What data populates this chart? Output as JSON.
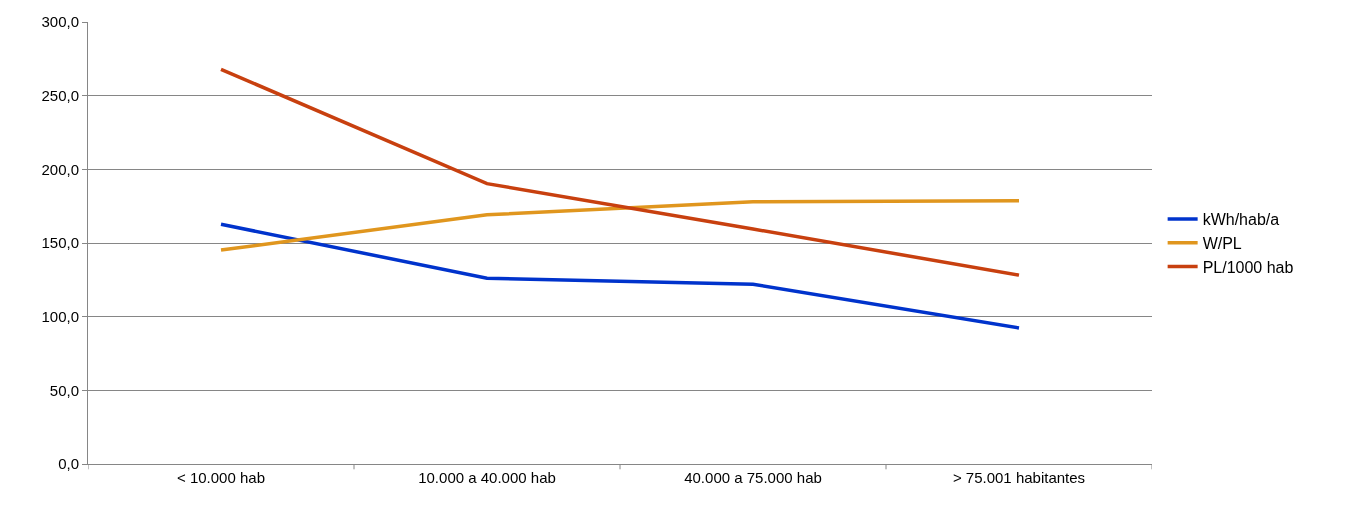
{
  "chart_data": {
    "type": "line",
    "categories": [
      "< 10.000 hab",
      "10.000 a 40.000 hab",
      "40.000 a 75.000 hab",
      "> 75.001 habitantes"
    ],
    "series": [
      {
        "name": "kWh/hab/a",
        "color": "#0033cc",
        "values": [
          162.7,
          126.1,
          122.0,
          92.3
        ]
      },
      {
        "name": "W/PL",
        "color": "#e0961e",
        "values": [
          145.2,
          169.1,
          178.0,
          178.6
        ]
      },
      {
        "name": "PL/1000 hab",
        "color": "#c8400f",
        "values": [
          267.9,
          190.3,
          159.5,
          128.2
        ]
      }
    ],
    "ylim": [
      0,
      300
    ],
    "yticks": [
      {
        "value": 0,
        "label": "0,0"
      },
      {
        "value": 50,
        "label": "50,0"
      },
      {
        "value": 100,
        "label": "100,0"
      },
      {
        "value": 150,
        "label": "150,0"
      },
      {
        "value": 200,
        "label": "200,0"
      },
      {
        "value": 250,
        "label": "250,0"
      },
      {
        "value": 300,
        "label": "300,0"
      }
    ],
    "grid": "y",
    "legend": "right",
    "marker": "none",
    "line_style": "solid"
  }
}
